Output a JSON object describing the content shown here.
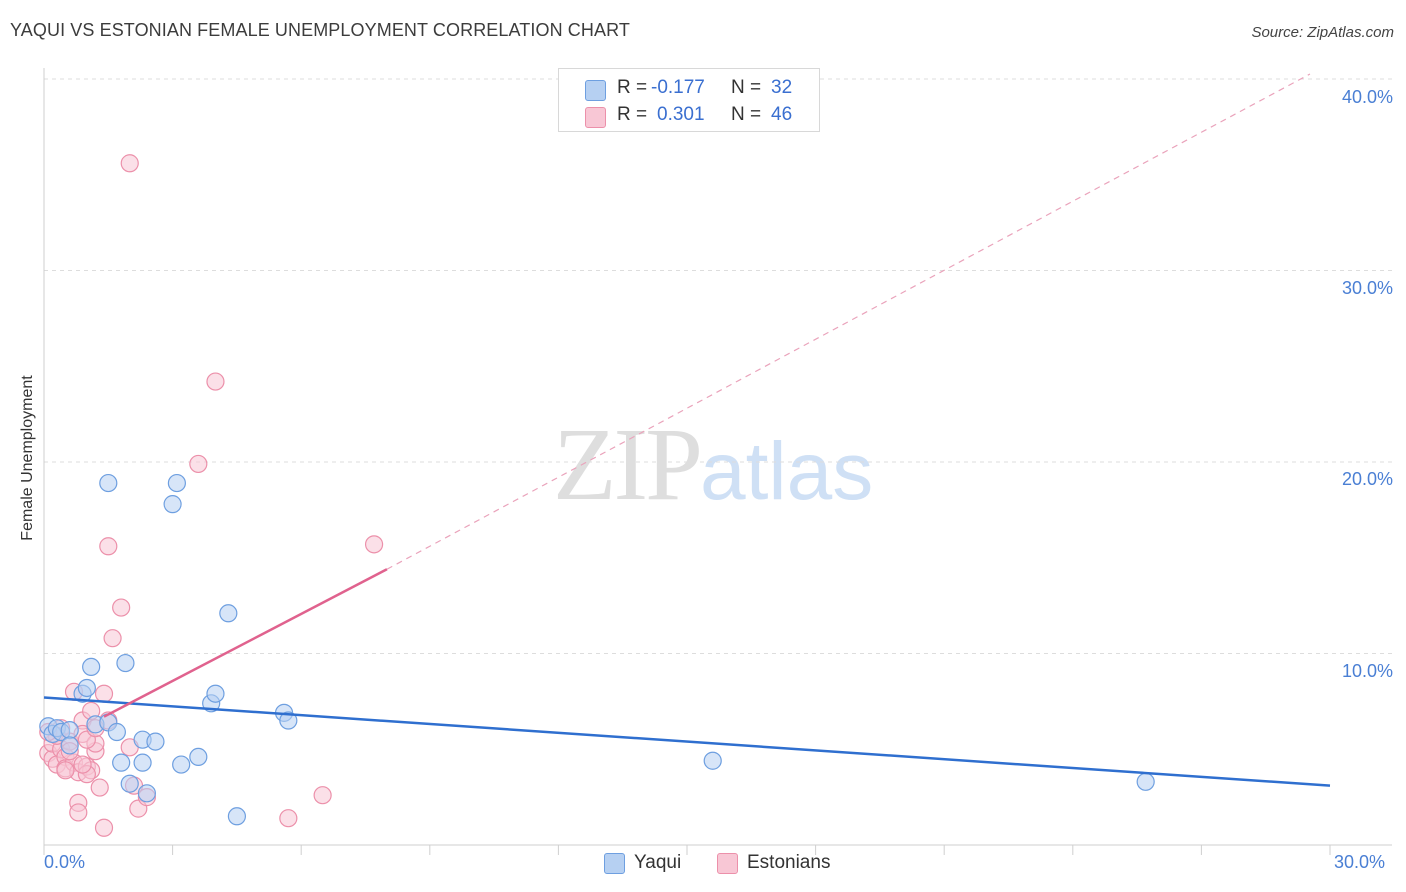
{
  "header": {
    "title": "YAQUI VS ESTONIAN FEMALE UNEMPLOYMENT CORRELATION CHART",
    "source": "Source: ZipAtlas.com"
  },
  "legend": {
    "series": [
      {
        "name": "Yaqui",
        "r_label": "R =",
        "r_value": "-0.177",
        "n_label": "N =",
        "n_value": "32",
        "fill": "#b6d0f2",
        "stroke": "#6e9fe0"
      },
      {
        "name": "Estonians",
        "r_label": "R =",
        "r_value": "0.301",
        "n_label": "N =",
        "n_value": "46",
        "fill": "#f8c7d5",
        "stroke": "#ec90aa"
      }
    ]
  },
  "axes": {
    "ylabel": "Female Unemployment",
    "y_ticks": [
      "40.0%",
      "30.0%",
      "20.0%",
      "10.0%"
    ],
    "x_ticks": [
      "0.0%",
      "30.0%"
    ]
  },
  "watermark": {
    "zip": "ZIP",
    "atlas": "atlas"
  },
  "colors": {
    "yaqui_line": "#2f6fcf",
    "estonian_line": "#e0628e",
    "tick_text": "#4a7fd4",
    "grid": "#dddddd"
  },
  "chart_data": {
    "type": "scatter",
    "title": "YAQUI VS ESTONIAN FEMALE UNEMPLOYMENT CORRELATION CHART",
    "xlabel": "",
    "ylabel": "Female Unemployment",
    "xlim": [
      0,
      30
    ],
    "ylim": [
      0,
      40
    ],
    "x_unit": "%",
    "y_unit": "%",
    "grid": true,
    "legend_position": "top-center",
    "series": [
      {
        "name": "Yaqui",
        "r": -0.177,
        "n": 32,
        "color": "#6e9fe0",
        "trend": {
          "x": [
            0,
            30
          ],
          "y": [
            7.7,
            3.1
          ],
          "style": "solid"
        },
        "points": [
          [
            0.1,
            6.2
          ],
          [
            0.2,
            5.8
          ],
          [
            0.3,
            6.1
          ],
          [
            0.4,
            5.9
          ],
          [
            0.6,
            6.0
          ],
          [
            0.6,
            5.2
          ],
          [
            0.9,
            7.9
          ],
          [
            1.0,
            8.2
          ],
          [
            1.1,
            9.3
          ],
          [
            1.2,
            6.3
          ],
          [
            1.5,
            18.9
          ],
          [
            1.5,
            6.4
          ],
          [
            1.7,
            5.9
          ],
          [
            1.8,
            4.3
          ],
          [
            1.9,
            9.5
          ],
          [
            2.0,
            3.2
          ],
          [
            2.3,
            5.5
          ],
          [
            2.3,
            4.3
          ],
          [
            2.4,
            2.7
          ],
          [
            2.6,
            5.4
          ],
          [
            3.0,
            17.8
          ],
          [
            3.1,
            18.9
          ],
          [
            3.2,
            4.2
          ],
          [
            3.6,
            4.6
          ],
          [
            3.9,
            7.4
          ],
          [
            4.0,
            7.9
          ],
          [
            4.3,
            12.1
          ],
          [
            4.5,
            1.5
          ],
          [
            5.6,
            6.9
          ],
          [
            5.7,
            6.5
          ],
          [
            15.6,
            4.4
          ],
          [
            25.7,
            3.3
          ]
        ]
      },
      {
        "name": "Estonians",
        "r": 0.301,
        "n": 46,
        "color": "#ec90aa",
        "trend": {
          "x": [
            0,
            8
          ],
          "y": [
            5.0,
            14.4
          ],
          "style": "solid",
          "extended_to": [
            30,
            40
          ],
          "extended_style": "dashed"
        },
        "points": [
          [
            0.1,
            4.8
          ],
          [
            0.2,
            4.5
          ],
          [
            0.2,
            5.3
          ],
          [
            0.3,
            4.2
          ],
          [
            0.4,
            5.0
          ],
          [
            0.5,
            4.6
          ],
          [
            0.5,
            4.0
          ],
          [
            0.6,
            5.4
          ],
          [
            0.7,
            4.3
          ],
          [
            0.7,
            8.0
          ],
          [
            0.8,
            3.8
          ],
          [
            0.8,
            2.2
          ],
          [
            0.8,
            1.7
          ],
          [
            0.9,
            6.5
          ],
          [
            0.9,
            5.8
          ],
          [
            1.0,
            4.1
          ],
          [
            1.1,
            3.9
          ],
          [
            1.0,
            3.7
          ],
          [
            1.1,
            7.0
          ],
          [
            1.2,
            4.9
          ],
          [
            1.2,
            5.3
          ],
          [
            1.3,
            3.0
          ],
          [
            1.4,
            7.9
          ],
          [
            1.4,
            0.9
          ],
          [
            1.5,
            6.5
          ],
          [
            1.5,
            15.6
          ],
          [
            1.6,
            10.8
          ],
          [
            1.8,
            12.4
          ],
          [
            2.0,
            35.6
          ],
          [
            2.0,
            5.1
          ],
          [
            2.1,
            3.1
          ],
          [
            2.2,
            1.9
          ],
          [
            2.4,
            2.5
          ],
          [
            3.6,
            19.9
          ],
          [
            4.0,
            24.2
          ],
          [
            5.7,
            1.4
          ],
          [
            6.5,
            2.6
          ],
          [
            7.7,
            15.7
          ],
          [
            0.4,
            6.1
          ],
          [
            0.3,
            5.7
          ],
          [
            0.9,
            4.2
          ],
          [
            1.0,
            5.5
          ],
          [
            0.6,
            4.9
          ],
          [
            1.2,
            6.1
          ],
          [
            0.1,
            5.9
          ],
          [
            0.5,
            3.9
          ]
        ]
      }
    ]
  }
}
